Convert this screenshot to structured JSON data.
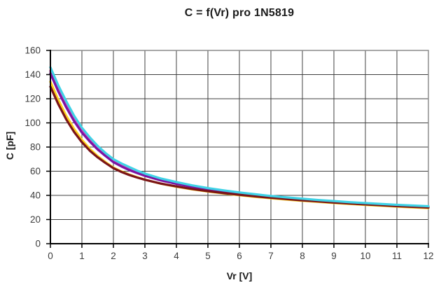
{
  "chart": {
    "title": "C = f(Vr) pro 1N5819",
    "xlabel": "Vr [V]",
    "ylabel": "C [pF]"
  },
  "colors": {
    "background": "#ffffff",
    "gridline": "#3f3f3f",
    "plot_border": "#8c8c8c",
    "axis_line": "#000000",
    "tick_label": "#3d3d3d",
    "series_turquoise": "#3fd2e6",
    "series_magenta": "#e33fb8",
    "series_purple": "#7c13a2",
    "series_yellow": "#ffd21e",
    "series_dark_red": "#7a1418"
  },
  "chart_data": {
    "type": "line",
    "title": "C = f(Vr) pro 1N5819",
    "xlabel": "Vr [V]",
    "ylabel": "C [pF]",
    "xlim": [
      0,
      12
    ],
    "ylim": [
      0,
      160
    ],
    "x_ticks": [
      0,
      1,
      2,
      3,
      4,
      5,
      6,
      7,
      8,
      9,
      10,
      11,
      12
    ],
    "y_ticks": [
      0,
      20,
      40,
      60,
      80,
      100,
      120,
      140,
      160
    ],
    "grid": true,
    "legend": "none",
    "x": [
      0,
      0.25,
      0.5,
      0.75,
      1,
      1.25,
      1.5,
      1.75,
      2,
      2.25,
      2.5,
      2.75,
      3,
      3.5,
      4,
      4.5,
      5,
      5.5,
      6,
      6.5,
      7,
      7.5,
      8,
      8.5,
      9,
      9.5,
      10,
      10.5,
      11,
      11.5,
      12
    ],
    "series": [
      {
        "name": "magenta",
        "color": "#e33fb8",
        "values": [
          143,
          128,
          115,
          103.5,
          93.5,
          86,
          79.3,
          73.7,
          68.7,
          65,
          62,
          59.4,
          57,
          53.2,
          50.2,
          47.6,
          45.4,
          43.6,
          42,
          40.5,
          39.2,
          38,
          36.9,
          35.9,
          35,
          34.1,
          33.3,
          32.6,
          31.9,
          31.3,
          30.7
        ]
      },
      {
        "name": "purple",
        "color": "#7c13a2",
        "values": [
          141,
          126,
          113,
          101.5,
          92,
          84.5,
          78,
          72.5,
          67.5,
          64,
          61,
          58.5,
          56.2,
          52.4,
          49.5,
          47,
          44.9,
          43.1,
          41.5,
          40.1,
          38.8,
          37.6,
          36.5,
          35.5,
          34.6,
          33.8,
          33,
          32.3,
          31.6,
          31,
          30.4
        ]
      },
      {
        "name": "yellow",
        "color": "#ffd21e",
        "values": [
          134,
          119,
          106,
          95,
          86,
          78.5,
          72.5,
          67.5,
          63,
          59.8,
          57.2,
          55,
          53,
          49.7,
          47.2,
          45,
          43.2,
          41.6,
          40.1,
          38.8,
          37.6,
          36.5,
          35.5,
          34.6,
          33.7,
          32.9,
          32.1,
          31.4,
          30.7,
          30.1,
          29.5
        ]
      },
      {
        "name": "dark-red",
        "color": "#7a1418",
        "values": [
          130,
          115.5,
          103,
          92.5,
          84,
          77,
          71.5,
          66.8,
          62.5,
          59.4,
          56.9,
          54.8,
          52.9,
          49.8,
          47.4,
          45.3,
          43.5,
          41.9,
          40.5,
          39.2,
          38,
          36.9,
          35.9,
          35,
          34.1,
          33.3,
          32.5,
          31.8,
          31.1,
          30.5,
          29.9
        ]
      },
      {
        "name": "turquoise",
        "color": "#3fd2e6",
        "values": [
          146,
          131,
          118,
          106,
          96,
          88,
          81,
          75,
          70,
          66.5,
          63.5,
          60.5,
          58,
          54,
          51,
          48.3,
          46,
          44.1,
          42.4,
          40.9,
          39.5,
          38.3,
          37.2,
          36.2,
          35.3,
          34.4,
          33.6,
          32.9,
          32.2,
          31.6,
          31
        ]
      }
    ]
  }
}
